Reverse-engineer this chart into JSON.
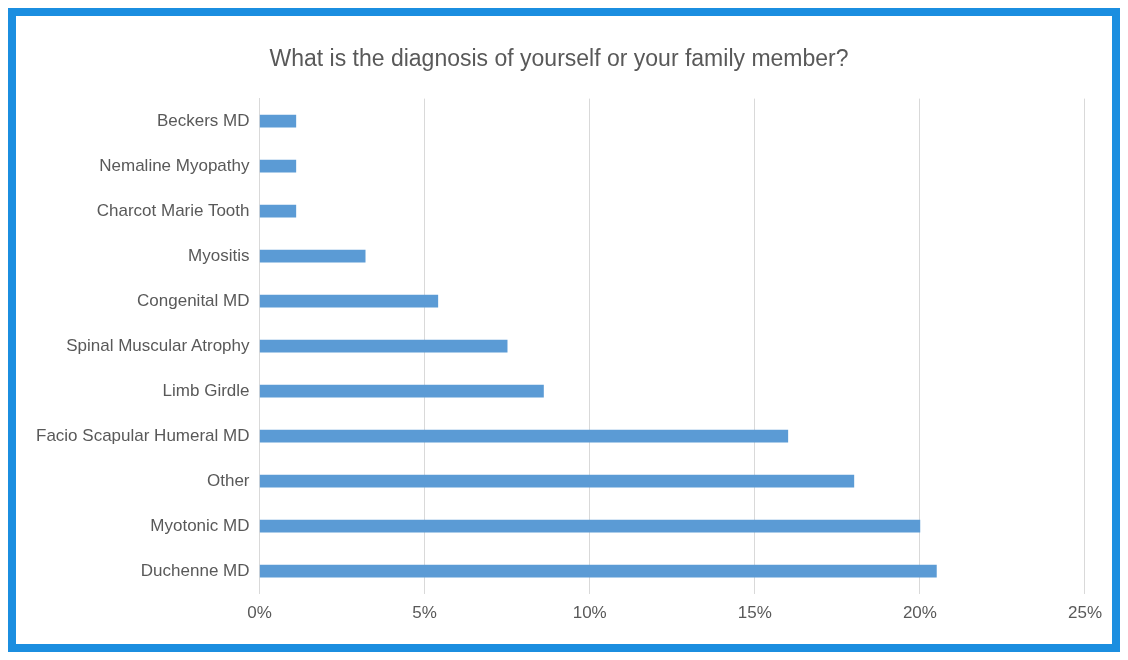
{
  "chart_data": {
    "type": "bar",
    "orientation": "horizontal",
    "title": "What is the diagnosis of yourself or your family member?",
    "categories": [
      "Beckers MD",
      "Nemaline Myopathy",
      "Charcot Marie Tooth",
      "Myositis",
      "Congenital MD",
      "Spinal Muscular Atrophy",
      "Limb Girdle",
      "Facio Scapular Humeral MD",
      "Other",
      "Myotonic MD",
      "Duchenne MD"
    ],
    "values": [
      1.1,
      1.1,
      1.1,
      3.2,
      5.4,
      7.5,
      8.6,
      16,
      18,
      20,
      20.5
    ],
    "color": "#5b9bd5",
    "xlim": [
      0,
      25
    ],
    "xticks": [
      {
        "value": 0,
        "label": "0%"
      },
      {
        "value": 5,
        "label": "5%"
      },
      {
        "value": 10,
        "label": "10%"
      },
      {
        "value": 15,
        "label": "15%"
      },
      {
        "value": 20,
        "label": "20%"
      },
      {
        "value": 25,
        "label": "25%"
      }
    ],
    "grid": "x",
    "legend": false
  }
}
